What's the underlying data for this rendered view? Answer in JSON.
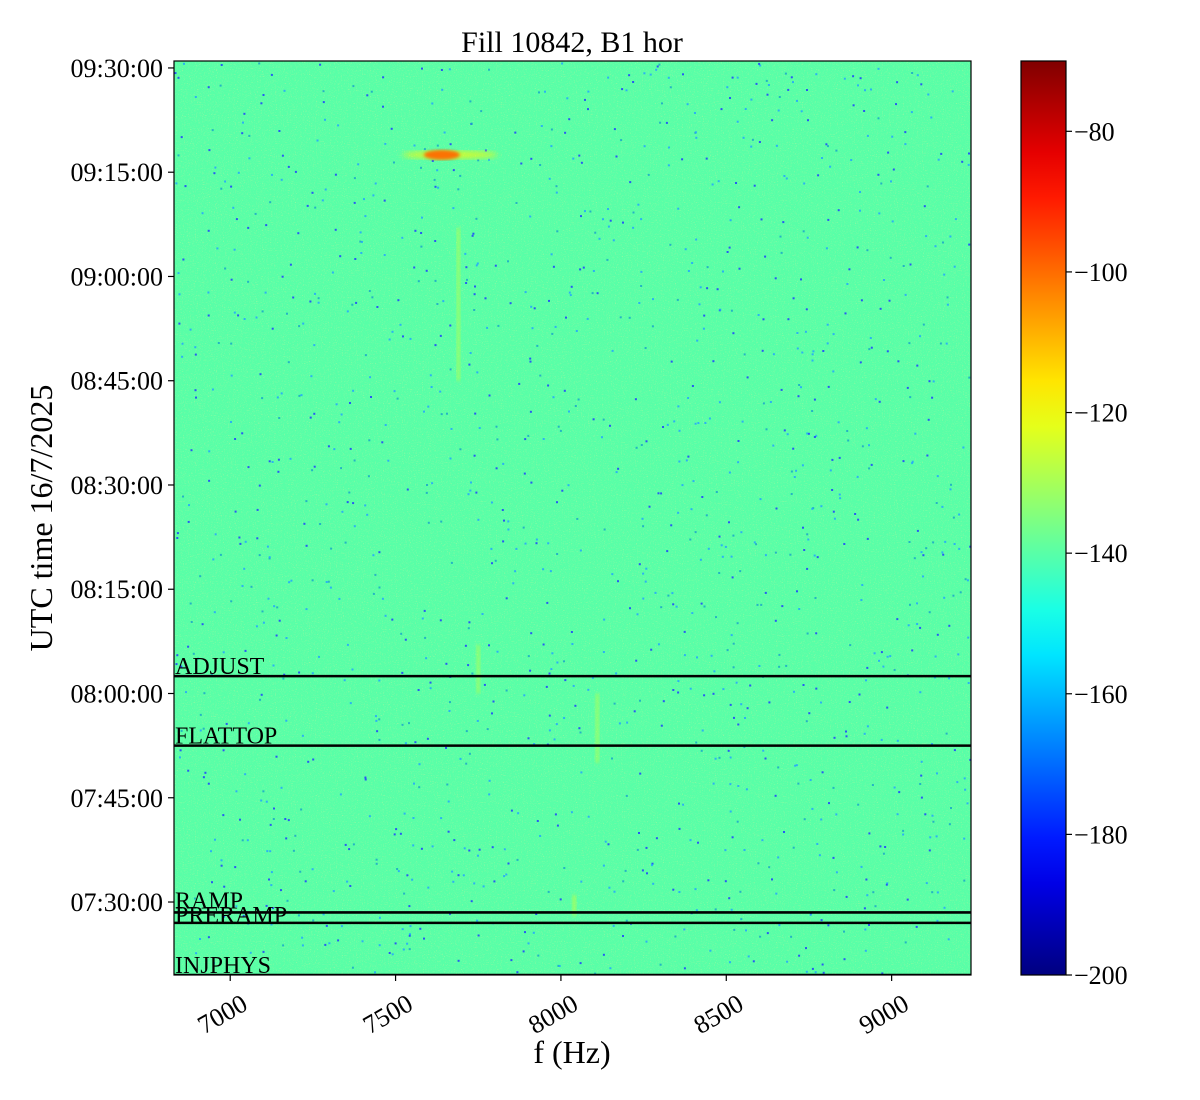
{
  "chart_data": {
    "type": "heatmap",
    "title": "Fill 10842, B1 hor",
    "xlabel": "f (Hz)",
    "ylabel": "UTC time 16/7/2025",
    "x_range_hz": [
      6830,
      9240
    ],
    "y_range_time": [
      "07:19:30",
      "09:31:00"
    ],
    "x_ticks": [
      7000,
      7500,
      8000,
      8500,
      9000
    ],
    "x_tick_labels": [
      "7000",
      "7500",
      "8000",
      "8500",
      "9000"
    ],
    "y_ticks": [
      "07:30:00",
      "07:45:00",
      "08:00:00",
      "08:15:00",
      "08:30:00",
      "08:45:00",
      "09:00:00",
      "09:15:00",
      "09:30:00"
    ],
    "colorbar": {
      "colormap": "jet",
      "range": [
        -200,
        -70
      ],
      "ticks": [
        -80,
        -100,
        -120,
        -140,
        -160,
        -180,
        -200
      ],
      "tick_labels": [
        "−80",
        "−100",
        "−120",
        "−140",
        "−160",
        "−180",
        "−200"
      ]
    },
    "background_level": -140,
    "features": [
      {
        "kind": "hotspot",
        "f_hz": 7640,
        "time": "09:17:30",
        "value": -100
      },
      {
        "kind": "streak",
        "f_hz": 7690,
        "time_from": "08:45:00",
        "time_to": "09:07:00",
        "value": -125
      },
      {
        "kind": "streak",
        "f_hz": 7750,
        "time_from": "08:00:00",
        "time_to": "08:07:00",
        "value": -125
      },
      {
        "kind": "streak",
        "f_hz": 8110,
        "time_from": "07:50:00",
        "time_to": "08:00:00",
        "value": -125
      },
      {
        "kind": "streak",
        "f_hz": 8040,
        "time_from": "07:28:00",
        "time_to": "07:31:00",
        "value": -122
      }
    ],
    "phase_markers": [
      {
        "label": "ADJUST",
        "time": "08:02:30"
      },
      {
        "label": "FLATTOP",
        "time": "07:52:30"
      },
      {
        "label": "RAMP",
        "time": "07:28:30"
      },
      {
        "label": "PRERAMP",
        "time": "07:27:00"
      },
      {
        "label": "INJPHYS",
        "time": "07:19:30"
      }
    ]
  }
}
